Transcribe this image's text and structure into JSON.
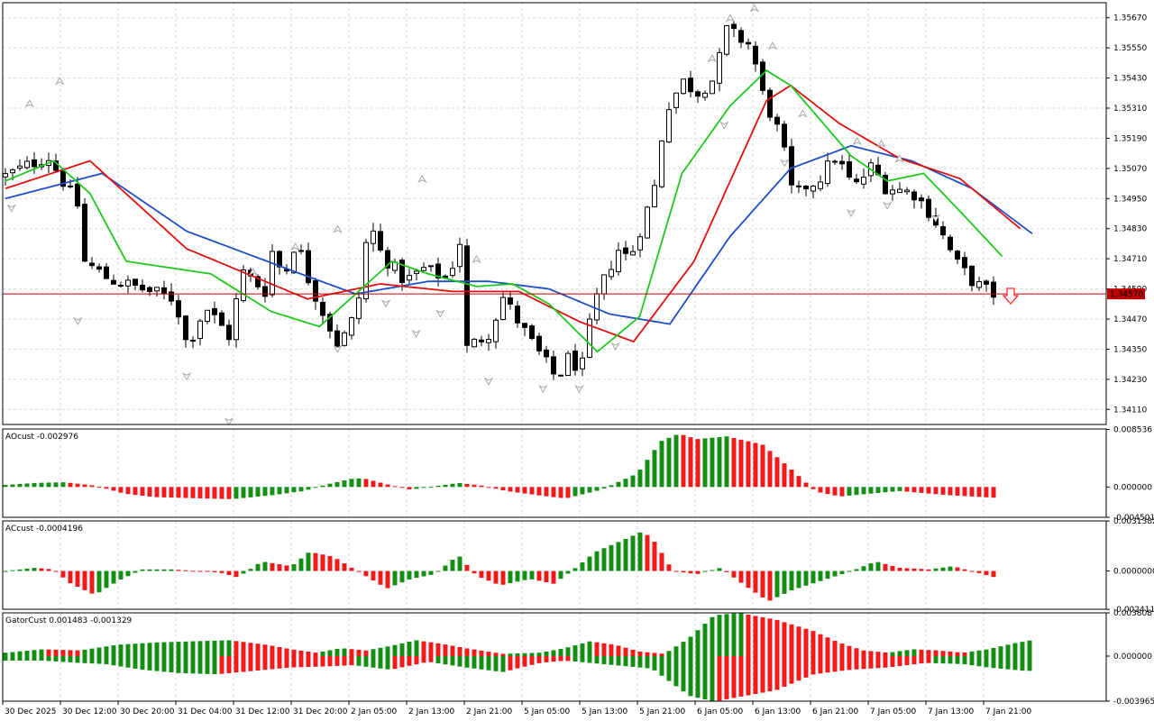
{
  "colors": {
    "background": "#ffffff",
    "frame": "#000000",
    "grid": "#d9d9d9",
    "bull_body": "#ffffff",
    "bear_body": "#000000",
    "candle_outline": "#000000",
    "fractal": "#a8a8a8",
    "jaw": "#1f4fc8",
    "teeth": "#e01010",
    "lips": "#1ec81e",
    "price_line": "#c00000",
    "price_label_bg": "#c00000",
    "price_label_text": "#ffffff",
    "osc_up": "#138f13",
    "osc_down": "#f01a1a",
    "signal_arrow": "#ff2a2a"
  },
  "chart_data": [
    {
      "id": "main",
      "type": "candlestick",
      "indicators": [
        "Alligator",
        "Fractals"
      ],
      "ylim": [
        1.3405,
        1.3573
      ],
      "yticks": [
        "1.35670",
        "1.35550",
        "1.35430",
        "1.35310",
        "1.35190",
        "1.35070",
        "1.34950",
        "1.34830",
        "1.34710",
        "1.34590",
        "1.34470",
        "1.34350",
        "1.34230",
        "1.34110"
      ],
      "current_price": "1.34570",
      "grid": true,
      "bar_count": 138,
      "keypoints": [
        [
          0,
          1.3504
        ],
        [
          7,
          1.3512
        ],
        [
          12,
          1.3492
        ],
        [
          13,
          1.347
        ],
        [
          17,
          1.3463
        ],
        [
          28,
          1.3455
        ],
        [
          30,
          1.3436
        ],
        [
          33,
          1.3452
        ],
        [
          37,
          1.344
        ],
        [
          39,
          1.3466
        ],
        [
          43,
          1.3458
        ],
        [
          44,
          1.3474
        ],
        [
          46,
          1.3464
        ],
        [
          48,
          1.3479
        ],
        [
          50,
          1.3463
        ],
        [
          52,
          1.3452
        ],
        [
          55,
          1.3436
        ],
        [
          58,
          1.345
        ],
        [
          60,
          1.3486
        ],
        [
          62,
          1.3473
        ],
        [
          66,
          1.3462
        ],
        [
          69,
          1.3467
        ],
        [
          73,
          1.3463
        ],
        [
          75,
          1.3478
        ],
        [
          76,
          1.3435
        ],
        [
          80,
          1.3442
        ],
        [
          82,
          1.3456
        ],
        [
          87,
          1.3437
        ],
        [
          91,
          1.3423
        ],
        [
          93,
          1.3432
        ],
        [
          95,
          1.3426
        ],
        [
          97,
          1.3452
        ],
        [
          101,
          1.3475
        ],
        [
          103,
          1.3471
        ],
        [
          107,
          1.3498
        ],
        [
          109,
          1.3531
        ],
        [
          112,
          1.3542
        ],
        [
          114,
          1.3537
        ],
        [
          117,
          1.3543
        ],
        [
          119,
          1.3562
        ],
        [
          121,
          1.3559
        ],
        [
          123,
          1.3556
        ],
        [
          125,
          1.3536
        ],
        [
          128,
          1.3519
        ],
        [
          130,
          1.3495
        ],
        [
          132,
          1.35
        ],
        [
          134,
          1.3502
        ],
        [
          137,
          1.3512
        ],
        [
          140,
          1.3499
        ],
        [
          143,
          1.3508
        ],
        [
          145,
          1.35
        ],
        [
          150,
          1.3497
        ],
        [
          153,
          1.3488
        ],
        [
          157,
          1.3469
        ],
        [
          160,
          1.3461
        ],
        [
          163,
          1.3457
        ]
      ],
      "jaw_keypoints": [
        [
          0,
          1.3495
        ],
        [
          16,
          1.3505
        ],
        [
          30,
          1.3482
        ],
        [
          50,
          1.3464
        ],
        [
          58,
          1.3457
        ],
        [
          70,
          1.3462
        ],
        [
          80,
          1.3462
        ],
        [
          90,
          1.3459
        ],
        [
          100,
          1.3449
        ],
        [
          110,
          1.3445
        ],
        [
          120,
          1.348
        ],
        [
          130,
          1.3507
        ],
        [
          140,
          1.3516
        ],
        [
          150,
          1.351
        ],
        [
          160,
          1.3499
        ],
        [
          170,
          1.3481
        ]
      ],
      "teeth_keypoints": [
        [
          0,
          1.3499
        ],
        [
          14,
          1.351
        ],
        [
          30,
          1.3475
        ],
        [
          42,
          1.3463
        ],
        [
          50,
          1.3455
        ],
        [
          62,
          1.3461
        ],
        [
          74,
          1.3458
        ],
        [
          85,
          1.3458
        ],
        [
          95,
          1.3446
        ],
        [
          104,
          1.3438
        ],
        [
          114,
          1.347
        ],
        [
          126,
          1.3534
        ],
        [
          130,
          1.354
        ],
        [
          138,
          1.3525
        ],
        [
          148,
          1.3511
        ],
        [
          158,
          1.3503
        ],
        [
          168,
          1.3483
        ]
      ],
      "lips_keypoints": [
        [
          0,
          1.3502
        ],
        [
          8,
          1.351
        ],
        [
          14,
          1.3497
        ],
        [
          20,
          1.347
        ],
        [
          34,
          1.3465
        ],
        [
          44,
          1.345
        ],
        [
          52,
          1.3444
        ],
        [
          64,
          1.347
        ],
        [
          70,
          1.3465
        ],
        [
          78,
          1.346
        ],
        [
          84,
          1.3461
        ],
        [
          90,
          1.3453
        ],
        [
          98,
          1.3434
        ],
        [
          105,
          1.3448
        ],
        [
          112,
          1.3505
        ],
        [
          120,
          1.3532
        ],
        [
          126,
          1.3546
        ],
        [
          130,
          1.354
        ],
        [
          140,
          1.3512
        ],
        [
          146,
          1.3502
        ],
        [
          152,
          1.3505
        ],
        [
          158,
          1.349
        ],
        [
          165,
          1.3472
        ]
      ],
      "fractals_up": [
        [
          4,
          1.3532
        ],
        [
          9,
          1.3541
        ],
        [
          41,
          1.3465
        ],
        [
          48,
          1.3475
        ],
        [
          55,
          1.3482
        ],
        [
          69,
          1.3502
        ],
        [
          78,
          1.347
        ],
        [
          117,
          1.355
        ],
        [
          120,
          1.3566
        ],
        [
          124,
          1.357
        ],
        [
          127,
          1.3555
        ],
        [
          132,
          1.3528
        ],
        [
          141,
          1.3517
        ],
        [
          145,
          1.3516
        ],
        [
          148,
          1.351
        ]
      ],
      "fractals_down": [
        [
          1,
          1.3492
        ],
        [
          12,
          1.3447
        ],
        [
          30,
          1.3425
        ],
        [
          37,
          1.3407
        ],
        [
          55,
          1.3436
        ],
        [
          63,
          1.3454
        ],
        [
          68,
          1.3442
        ],
        [
          72,
          1.345
        ],
        [
          80,
          1.3423
        ],
        [
          89,
          1.342
        ],
        [
          95,
          1.342
        ],
        [
          101,
          1.3437
        ],
        [
          119,
          1.3525
        ],
        [
          129,
          1.351
        ],
        [
          140,
          1.349
        ],
        [
          146,
          1.3493
        ],
        [
          154,
          1.3488
        ]
      ]
    },
    {
      "id": "ao",
      "type": "histogram",
      "title": "AOcust -0.002976",
      "ylim": [
        -0.0045,
        0.0086
      ],
      "yticks": [
        "0.008536",
        "0.000000",
        "-0.004501"
      ],
      "bar_count": 138,
      "keypoints": [
        [
          0,
          0.0003
        ],
        [
          5,
          0.0006
        ],
        [
          10,
          0.0007
        ],
        [
          15,
          0.0002
        ],
        [
          20,
          -0.001
        ],
        [
          25,
          -0.0015
        ],
        [
          33,
          -0.0017
        ],
        [
          38,
          -0.0018
        ],
        [
          45,
          -0.0012
        ],
        [
          50,
          -0.0006
        ],
        [
          54,
          0.0004
        ],
        [
          58,
          0.0012
        ],
        [
          60,
          0.0013
        ],
        [
          64,
          0.0004
        ],
        [
          68,
          -0.0004
        ],
        [
          72,
          0.0001
        ],
        [
          76,
          0.0006
        ],
        [
          80,
          0.0002
        ],
        [
          84,
          -0.0006
        ],
        [
          90,
          -0.0013
        ],
        [
          94,
          -0.0017
        ],
        [
          100,
          -0.0004
        ],
        [
          106,
          0.002
        ],
        [
          110,
          0.0068
        ],
        [
          113,
          0.0079
        ],
        [
          116,
          0.0071
        ],
        [
          121,
          0.0075
        ],
        [
          127,
          0.0063
        ],
        [
          132,
          0.0025
        ],
        [
          136,
          -0.0007
        ],
        [
          140,
          -0.0014
        ],
        [
          145,
          -0.001
        ],
        [
          150,
          -0.0006
        ],
        [
          158,
          -0.0012
        ],
        [
          166,
          -0.0016
        ]
      ]
    },
    {
      "id": "ac",
      "type": "histogram",
      "title": "ACcust -0.0004196",
      "ylim": [
        -0.0024,
        0.00314
      ],
      "yticks": [
        "0.0031382",
        "0.0000000",
        "-0.0024114"
      ],
      "bar_count": 138,
      "keypoints": [
        [
          0,
          0.0
        ],
        [
          5,
          0.0002
        ],
        [
          8,
          0.0001
        ],
        [
          11,
          -0.0008
        ],
        [
          15,
          -0.0015
        ],
        [
          19,
          -0.0006
        ],
        [
          23,
          0.0001
        ],
        [
          28,
          0.0001
        ],
        [
          32,
          0.0
        ],
        [
          36,
          -0.0001
        ],
        [
          39,
          -0.0004
        ],
        [
          43,
          0.0006
        ],
        [
          48,
          0.0003
        ],
        [
          51,
          0.0012
        ],
        [
          55,
          0.0009
        ],
        [
          59,
          0.0
        ],
        [
          64,
          -0.0011
        ],
        [
          68,
          -0.0005
        ],
        [
          72,
          -0.0002
        ],
        [
          76,
          0.001
        ],
        [
          79,
          -0.0003
        ],
        [
          83,
          -0.0009
        ],
        [
          88,
          -0.0005
        ],
        [
          92,
          -0.0008
        ],
        [
          95,
          0.0
        ],
        [
          99,
          0.0012
        ],
        [
          104,
          0.002
        ],
        [
          107,
          0.0025
        ],
        [
          109,
          0.0018
        ],
        [
          112,
          0.0
        ],
        [
          116,
          -0.0002
        ],
        [
          120,
          0.0002
        ],
        [
          124,
          -0.0009
        ],
        [
          128,
          -0.0019
        ],
        [
          132,
          -0.0012
        ],
        [
          137,
          -0.0006
        ],
        [
          142,
          0.0
        ],
        [
          146,
          0.0006
        ],
        [
          150,
          0.0002
        ],
        [
          155,
          0.0001
        ],
        [
          159,
          0.0003
        ],
        [
          166,
          -0.0004
        ]
      ]
    },
    {
      "id": "gator",
      "type": "gator",
      "title": "GatorCust 0.001483 -0.001329",
      "ylim": [
        -0.00397,
        0.00381
      ],
      "yticks": [
        "0.003808",
        "0.000000",
        "-0.003965"
      ],
      "bar_count": 143,
      "upper_keypoints": [
        [
          0,
          0.0003
        ],
        [
          6,
          0.0006
        ],
        [
          12,
          0.0005
        ],
        [
          18,
          0.001
        ],
        [
          24,
          0.0012
        ],
        [
          30,
          0.0013
        ],
        [
          36,
          0.0014
        ],
        [
          42,
          0.001
        ],
        [
          46,
          0.0006
        ],
        [
          50,
          0.0003
        ],
        [
          54,
          0.0007
        ],
        [
          58,
          0.0005
        ],
        [
          62,
          0.0009
        ],
        [
          66,
          0.0014
        ],
        [
          70,
          0.0011
        ],
        [
          74,
          0.0007
        ],
        [
          80,
          0.0002
        ],
        [
          86,
          0.0003
        ],
        [
          90,
          0.0007
        ],
        [
          94,
          0.0013
        ],
        [
          98,
          0.001
        ],
        [
          102,
          0.0004
        ],
        [
          106,
          0.0002
        ],
        [
          110,
          0.0016
        ],
        [
          114,
          0.0036
        ],
        [
          118,
          0.0038
        ],
        [
          124,
          0.0032
        ],
        [
          130,
          0.0022
        ],
        [
          134,
          0.0012
        ],
        [
          138,
          0.0005
        ],
        [
          142,
          0.0003
        ],
        [
          146,
          0.0006
        ],
        [
          150,
          0.0005
        ],
        [
          154,
          0.0003
        ],
        [
          158,
          0.0006
        ],
        [
          162,
          0.0011
        ],
        [
          166,
          0.0015
        ]
      ],
      "lower_keypoints": [
        [
          0,
          -0.0004
        ],
        [
          6,
          -0.0004
        ],
        [
          12,
          -0.0006
        ],
        [
          16,
          -0.0007
        ],
        [
          22,
          -0.0012
        ],
        [
          28,
          -0.0015
        ],
        [
          34,
          -0.0016
        ],
        [
          40,
          -0.0013
        ],
        [
          46,
          -0.001
        ],
        [
          52,
          -0.0009
        ],
        [
          56,
          -0.0008
        ],
        [
          62,
          -0.0012
        ],
        [
          68,
          -0.0005
        ],
        [
          74,
          -0.001
        ],
        [
          80,
          -0.0014
        ],
        [
          86,
          -0.0006
        ],
        [
          90,
          -0.0004
        ],
        [
          96,
          -0.0007
        ],
        [
          104,
          -0.0011
        ],
        [
          110,
          -0.0035
        ],
        [
          114,
          -0.004
        ],
        [
          118,
          -0.0036
        ],
        [
          124,
          -0.003
        ],
        [
          130,
          -0.0016
        ],
        [
          136,
          -0.0012
        ],
        [
          142,
          -0.001
        ],
        [
          148,
          -0.0006
        ],
        [
          154,
          -0.0007
        ],
        [
          158,
          -0.001
        ],
        [
          164,
          -0.0013
        ]
      ]
    }
  ],
  "x_axis": {
    "labels": [
      "30 Dec 2025",
      "30 Dec 12:00",
      "30 Dec 20:00",
      "31 Dec 04:00",
      "31 Dec 12:00",
      "31 Dec 20:00",
      "2 Jan 05:00",
      "2 Jan 13:00",
      "2 Jan 21:00",
      "5 Jan 05:00",
      "5 Jan 13:00",
      "5 Jan 21:00",
      "6 Jan 05:00",
      "6 Jan 13:00",
      "6 Jan 21:00",
      "7 Jan 05:00",
      "7 Jan 13:00",
      "7 Jan 21:00"
    ],
    "label_bars": [
      0,
      16,
      32,
      48,
      64,
      80,
      96,
      112,
      128,
      144,
      160,
      176,
      192,
      208,
      224,
      240,
      256,
      272
    ]
  }
}
